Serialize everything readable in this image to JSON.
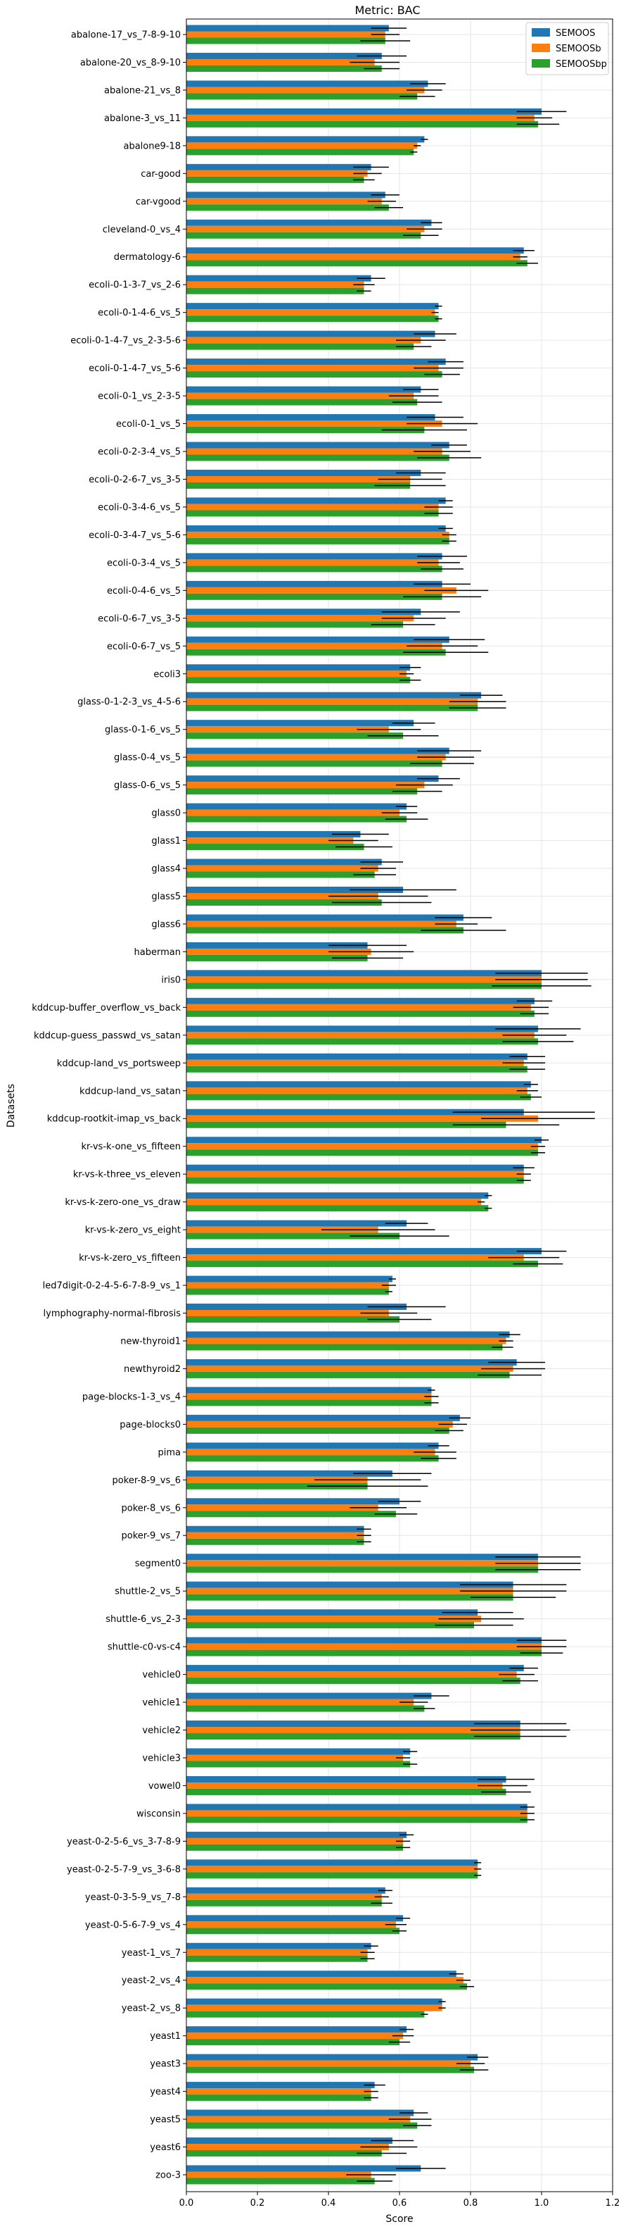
{
  "chart_data": {
    "type": "bar",
    "orientation": "horizontal",
    "title": "Metric: BAC",
    "xlabel": "Score",
    "ylabel": "Datasets",
    "xlim": [
      0,
      1.2
    ],
    "xticks": [
      "0.0",
      "0.2",
      "0.4",
      "0.6",
      "0.8",
      "1.0",
      "1.2"
    ],
    "grid": true,
    "legend_position": "top-right",
    "error_bars": true,
    "colors": [
      "#1f77b4",
      "#ff7f0e",
      "#2ca02c"
    ],
    "categories": [
      "abalone-17_vs_7-8-9-10",
      "abalone-20_vs_8-9-10",
      "abalone-21_vs_8",
      "abalone-3_vs_11",
      "abalone9-18",
      "car-good",
      "car-vgood",
      "cleveland-0_vs_4",
      "dermatology-6",
      "ecoli-0-1-3-7_vs_2-6",
      "ecoli-0-1-4-6_vs_5",
      "ecoli-0-1-4-7_vs_2-3-5-6",
      "ecoli-0-1-4-7_vs_5-6",
      "ecoli-0-1_vs_2-3-5",
      "ecoli-0-1_vs_5",
      "ecoli-0-2-3-4_vs_5",
      "ecoli-0-2-6-7_vs_3-5",
      "ecoli-0-3-4-6_vs_5",
      "ecoli-0-3-4-7_vs_5-6",
      "ecoli-0-3-4_vs_5",
      "ecoli-0-4-6_vs_5",
      "ecoli-0-6-7_vs_3-5",
      "ecoli-0-6-7_vs_5",
      "ecoli3",
      "glass-0-1-2-3_vs_4-5-6",
      "glass-0-1-6_vs_5",
      "glass-0-4_vs_5",
      "glass-0-6_vs_5",
      "glass0",
      "glass1",
      "glass4",
      "glass5",
      "glass6",
      "haberman",
      "iris0",
      "kddcup-buffer_overflow_vs_back",
      "kddcup-guess_passwd_vs_satan",
      "kddcup-land_vs_portsweep",
      "kddcup-land_vs_satan",
      "kddcup-rootkit-imap_vs_back",
      "kr-vs-k-one_vs_fifteen",
      "kr-vs-k-three_vs_eleven",
      "kr-vs-k-zero-one_vs_draw",
      "kr-vs-k-zero_vs_eight",
      "kr-vs-k-zero_vs_fifteen",
      "led7digit-0-2-4-5-6-7-8-9_vs_1",
      "lymphography-normal-fibrosis",
      "new-thyroid1",
      "newthyroid2",
      "page-blocks-1-3_vs_4",
      "page-blocks0",
      "pima",
      "poker-8-9_vs_6",
      "poker-8_vs_6",
      "poker-9_vs_7",
      "segment0",
      "shuttle-2_vs_5",
      "shuttle-6_vs_2-3",
      "shuttle-c0-vs-c4",
      "vehicle0",
      "vehicle1",
      "vehicle2",
      "vehicle3",
      "vowel0",
      "wisconsin",
      "yeast-0-2-5-6_vs_3-7-8-9",
      "yeast-0-2-5-7-9_vs_3-6-8",
      "yeast-0-3-5-9_vs_7-8",
      "yeast-0-5-6-7-9_vs_4",
      "yeast-1_vs_7",
      "yeast-2_vs_4",
      "yeast-2_vs_8",
      "yeast1",
      "yeast3",
      "yeast4",
      "yeast5",
      "yeast6",
      "zoo-3"
    ],
    "series": [
      {
        "name": "SEMOOS",
        "values": [
          0.57,
          0.55,
          0.68,
          1.0,
          0.67,
          0.52,
          0.56,
          0.69,
          0.95,
          0.52,
          0.71,
          0.7,
          0.73,
          0.66,
          0.7,
          0.74,
          0.66,
          0.73,
          0.73,
          0.72,
          0.72,
          0.66,
          0.74,
          0.63,
          0.83,
          0.64,
          0.74,
          0.71,
          0.62,
          0.49,
          0.55,
          0.61,
          0.78,
          0.51,
          1.0,
          0.98,
          0.99,
          0.96,
          0.97,
          0.95,
          1.0,
          0.95,
          0.85,
          0.62,
          1.0,
          0.58,
          0.62,
          0.91,
          0.93,
          0.69,
          0.77,
          0.71,
          0.58,
          0.6,
          0.5,
          0.99,
          0.92,
          0.82,
          1.0,
          0.95,
          0.69,
          0.94,
          0.63,
          0.9,
          0.96,
          0.62,
          0.82,
          0.56,
          0.61,
          0.52,
          0.76,
          0.72,
          0.62,
          0.82,
          0.53,
          0.64,
          0.58,
          0.66
        ]
      },
      {
        "name": "SEMOOSb",
        "values": [
          0.56,
          0.53,
          0.67,
          0.98,
          0.65,
          0.51,
          0.55,
          0.67,
          0.94,
          0.5,
          0.7,
          0.66,
          0.71,
          0.64,
          0.72,
          0.72,
          0.63,
          0.71,
          0.74,
          0.71,
          0.76,
          0.64,
          0.72,
          0.62,
          0.82,
          0.57,
          0.73,
          0.67,
          0.6,
          0.47,
          0.54,
          0.54,
          0.76,
          0.52,
          1.0,
          0.97,
          0.98,
          0.95,
          0.96,
          0.99,
          0.99,
          0.95,
          0.83,
          0.54,
          0.95,
          0.57,
          0.57,
          0.9,
          0.92,
          0.69,
          0.75,
          0.7,
          0.51,
          0.54,
          0.5,
          0.99,
          0.92,
          0.83,
          1.0,
          0.93,
          0.64,
          0.94,
          0.61,
          0.89,
          0.96,
          0.61,
          0.82,
          0.55,
          0.59,
          0.51,
          0.78,
          0.72,
          0.61,
          0.8,
          0.52,
          0.63,
          0.57,
          0.52
        ]
      },
      {
        "name": "SEMOOSbp",
        "values": [
          0.56,
          0.55,
          0.65,
          0.99,
          0.64,
          0.5,
          0.57,
          0.66,
          0.96,
          0.5,
          0.71,
          0.64,
          0.72,
          0.65,
          0.67,
          0.74,
          0.63,
          0.71,
          0.74,
          0.72,
          0.72,
          0.61,
          0.73,
          0.63,
          0.82,
          0.61,
          0.72,
          0.65,
          0.62,
          0.5,
          0.53,
          0.55,
          0.78,
          0.51,
          1.0,
          0.98,
          0.99,
          0.96,
          0.97,
          0.9,
          0.99,
          0.95,
          0.85,
          0.6,
          0.99,
          0.57,
          0.6,
          0.89,
          0.91,
          0.69,
          0.74,
          0.71,
          0.51,
          0.59,
          0.5,
          0.99,
          0.92,
          0.81,
          1.0,
          0.94,
          0.67,
          0.94,
          0.63,
          0.9,
          0.96,
          0.61,
          0.82,
          0.55,
          0.6,
          0.51,
          0.79,
          0.67,
          0.6,
          0.81,
          0.52,
          0.65,
          0.55,
          0.53
        ]
      }
    ],
    "errors": [
      [
        0.05,
        0.07,
        0.05,
        0.07,
        0.01,
        0.05,
        0.04,
        0.03,
        0.03,
        0.04,
        0.01,
        0.06,
        0.05,
        0.05,
        0.08,
        0.05,
        0.07,
        0.02,
        0.02,
        0.07,
        0.08,
        0.11,
        0.1,
        0.03,
        0.06,
        0.06,
        0.09,
        0.06,
        0.03,
        0.08,
        0.06,
        0.15,
        0.08,
        0.11,
        0.13,
        0.05,
        0.12,
        0.05,
        0.02,
        0.2,
        0.02,
        0.03,
        0.01,
        0.06,
        0.07,
        0.01,
        0.11,
        0.03,
        0.08,
        0.01,
        0.03,
        0.03,
        0.11,
        0.06,
        0.02,
        0.12,
        0.15,
        0.1,
        0.07,
        0.04,
        0.05,
        0.13,
        0.02,
        0.08,
        0.02,
        0.02,
        0.01,
        0.02,
        0.02,
        0.02,
        0.02,
        0.01,
        0.02,
        0.03,
        0.03,
        0.04,
        0.06,
        0.07
      ],
      [
        0.04,
        0.07,
        0.05,
        0.05,
        0.01,
        0.04,
        0.04,
        0.05,
        0.02,
        0.03,
        0.01,
        0.07,
        0.07,
        0.07,
        0.1,
        0.08,
        0.09,
        0.04,
        0.02,
        0.06,
        0.09,
        0.09,
        0.1,
        0.02,
        0.08,
        0.09,
        0.08,
        0.08,
        0.05,
        0.07,
        0.05,
        0.14,
        0.06,
        0.12,
        0.13,
        0.05,
        0.09,
        0.06,
        0.03,
        0.16,
        0.02,
        0.02,
        0.01,
        0.16,
        0.1,
        0.02,
        0.08,
        0.02,
        0.09,
        0.02,
        0.04,
        0.06,
        0.15,
        0.08,
        0.02,
        0.12,
        0.15,
        0.12,
        0.07,
        0.05,
        0.04,
        0.14,
        0.02,
        0.07,
        0.02,
        0.02,
        0.01,
        0.02,
        0.03,
        0.02,
        0.02,
        0.01,
        0.03,
        0.04,
        0.02,
        0.06,
        0.08,
        0.07
      ],
      [
        0.07,
        0.05,
        0.05,
        0.06,
        0.01,
        0.03,
        0.04,
        0.05,
        0.03,
        0.02,
        0.01,
        0.05,
        0.05,
        0.07,
        0.12,
        0.09,
        0.1,
        0.04,
        0.02,
        0.06,
        0.11,
        0.09,
        0.12,
        0.03,
        0.08,
        0.1,
        0.09,
        0.07,
        0.06,
        0.08,
        0.06,
        0.14,
        0.12,
        0.1,
        0.14,
        0.04,
        0.1,
        0.05,
        0.03,
        0.15,
        0.02,
        0.02,
        0.01,
        0.14,
        0.07,
        0.01,
        0.09,
        0.03,
        0.09,
        0.02,
        0.04,
        0.05,
        0.17,
        0.06,
        0.02,
        0.12,
        0.12,
        0.11,
        0.06,
        0.05,
        0.03,
        0.13,
        0.02,
        0.07,
        0.02,
        0.02,
        0.01,
        0.03,
        0.02,
        0.02,
        0.02,
        0.01,
        0.03,
        0.04,
        0.02,
        0.04,
        0.07,
        0.05
      ]
    ]
  }
}
